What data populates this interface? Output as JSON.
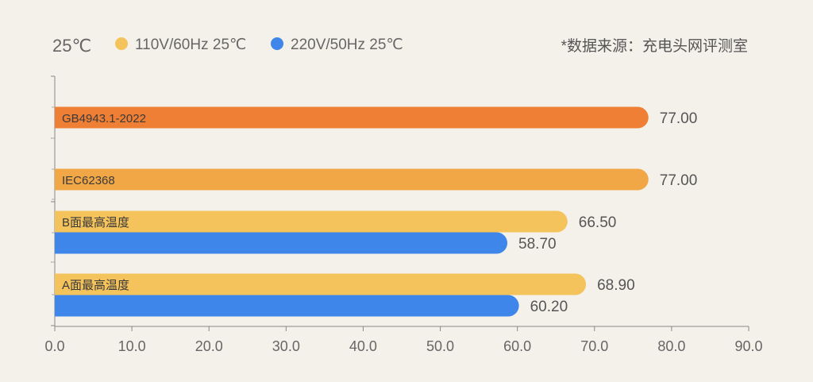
{
  "header": {
    "temp_label": "25℃",
    "legend": [
      {
        "label": "110V/60Hz 25℃",
        "color": "#f5c35c"
      },
      {
        "label": "220V/50Hz 25℃",
        "color": "#3f86ea"
      }
    ],
    "source_note": "*数据来源：充电头网评测室"
  },
  "chart_data": {
    "type": "bar",
    "orientation": "horizontal",
    "xlim": [
      0,
      90
    ],
    "x_ticks": [
      "0.0",
      "10.0",
      "20.0",
      "30.0",
      "40.0",
      "50.0",
      "60.0",
      "70.0",
      "80.0",
      "90.0"
    ],
    "grid": false,
    "legend_position": "top-left",
    "series": [
      {
        "name": "110V/60Hz 25℃",
        "color": "#f5c35c"
      },
      {
        "name": "220V/50Hz 25℃",
        "color": "#3f86ea"
      }
    ],
    "bars": [
      {
        "category": "GB4943.1-2022",
        "value": 77.0,
        "label": "77.00",
        "color": "#ee7f35"
      },
      {
        "category": "IEC62368",
        "value": 77.0,
        "label": "77.00",
        "color": "#f2a746"
      },
      {
        "category": "B面最高温度",
        "series": "110V/60Hz 25℃",
        "value": 66.5,
        "label": "66.50",
        "color": "#f5c35c"
      },
      {
        "category": "B面最高温度",
        "series": "220V/50Hz 25℃",
        "value": 58.7,
        "label": "58.70",
        "color": "#3f86ea"
      },
      {
        "category": "A面最高温度",
        "series": "110V/60Hz 25℃",
        "value": 68.9,
        "label": "68.90",
        "color": "#f5c35c"
      },
      {
        "category": "A面最高温度",
        "series": "220V/50Hz 25℃",
        "value": 60.2,
        "label": "60.20",
        "color": "#3f86ea"
      }
    ]
  }
}
